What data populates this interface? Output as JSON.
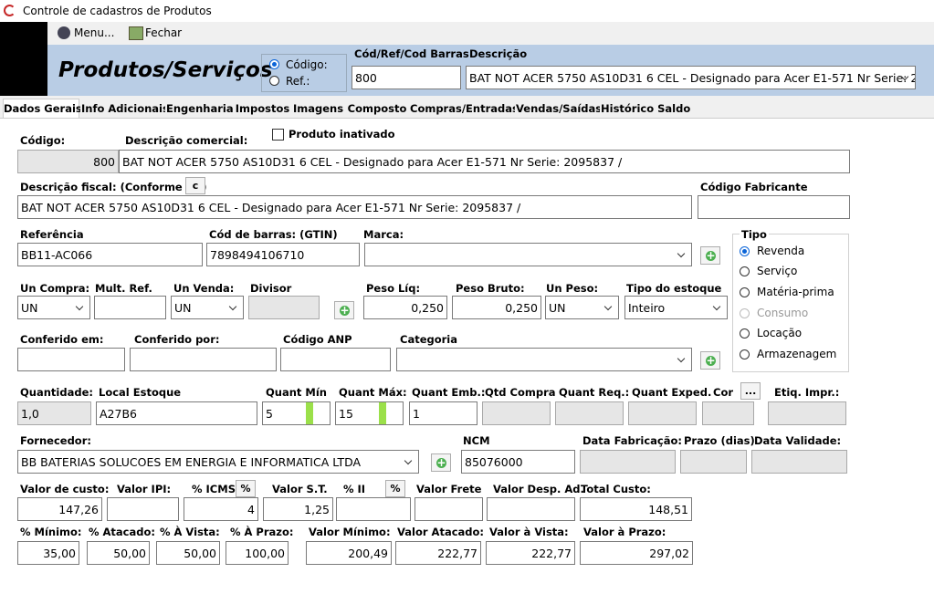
{
  "window_title": "Controle de cadastros de Produtos",
  "toolbar": [
    "Menu...",
    "Fechar"
  ],
  "header": {
    "title": "Produtos/Serviços",
    "search_by": [
      "Código:",
      "Ref.:"
    ],
    "code_label": "Cód/Ref/Cod Barras",
    "code_value": "800",
    "desc_label": "Descrição",
    "desc_value": "BAT NOT ACER 5750 AS10D31 6 CEL - Designado para Acer E1-571 Nr Serie: 2"
  },
  "tabs": [
    "Dados Gerais",
    "Info Adicionais",
    "Engenharia",
    "Impostos",
    "Imagens",
    "Composto",
    "Compras/Entradas",
    "Vendas/Saídas",
    "Histórico Saldo"
  ],
  "inactive_checkbox": "Produto inativado",
  "tipo": {
    "label": "Tipo",
    "options": [
      "Revenda",
      "Serviço",
      "Matéria-prima",
      "Consumo",
      "Locação",
      "Armazenagem"
    ]
  },
  "fields": [
    {
      "label": "Código:",
      "value": "800"
    },
    {
      "label": "Descrição comercial:",
      "value": "BAT NOT ACER 5750 AS10D31 6 CEL - Designado para Acer E1-571 Nr Serie: 2095837 /"
    },
    {
      "label": "Descrição fiscal: (Conforme NF)",
      "button": "c",
      "value": "BAT NOT ACER 5750 AS10D31 6 CEL - Designado para Acer E1-571 Nr Serie: 2095837 /"
    },
    {
      "label": "Código Fabricante"
    },
    {
      "label": "Referência",
      "value": "BB11-AC066"
    },
    {
      "label": "Cód de barras:  (GTIN)",
      "value": "7898494106710"
    },
    {
      "label": "Marca:"
    },
    {
      "label": "Un Compra:",
      "value": "UN"
    },
    {
      "label": "Mult. Ref."
    },
    {
      "label": "Un Venda:",
      "value": "UN"
    },
    {
      "label": "Divisor"
    },
    {
      "label": "Peso Líq:",
      "value": "0,250"
    },
    {
      "label": "Peso Bruto:",
      "value": "0,250"
    },
    {
      "label": "Un Peso:",
      "value": "UN"
    },
    {
      "label": "Tipo do estoque",
      "value": "Inteiro"
    },
    {
      "label": "Conferido em:"
    },
    {
      "label": "Conferido por:"
    },
    {
      "label": "Código ANP"
    },
    {
      "label": "Categoria"
    },
    {
      "label": "Quantidade:",
      "value": "1,0"
    },
    {
      "label": "Local Estoque",
      "value": "A27B6"
    },
    {
      "label": "Quant Mín",
      "value": "5"
    },
    {
      "label": "Quant Máx:",
      "value": "15"
    },
    {
      "label": "Quant Emb.:",
      "value": "1"
    },
    {
      "label": "Qtd Compra"
    },
    {
      "label": "Quant Req.:"
    },
    {
      "label": "Quant Exped."
    },
    {
      "label": "Cor",
      "button": "..."
    },
    {
      "label": "Etiq. Impr.:"
    },
    {
      "label": "Fornecedor:",
      "value": "BB BATERIAS SOLUCOES EM ENERGIA E INFORMATICA LTDA"
    },
    {
      "label": "NCM",
      "value": "85076000"
    },
    {
      "label": "Data Fabricação:"
    },
    {
      "label": "Prazo (dias)"
    },
    {
      "label": "Data Validade:"
    },
    {
      "label": "Valor de custo:",
      "value": "147,26"
    },
    {
      "label": "Valor IPI:"
    },
    {
      "label": "% ICMS",
      "button": "%",
      "value": "4"
    },
    {
      "label": "Valor S.T.",
      "value": "1,25"
    },
    {
      "label": "% II",
      "button": "%"
    },
    {
      "label": "Valor Frete"
    },
    {
      "label": "Valor Desp. Ad."
    },
    {
      "label": "Total Custo:",
      "value": "148,51"
    },
    {
      "label": "% Mínimo:",
      "value": "35,00"
    },
    {
      "label": "% Atacado:",
      "value": "50,00"
    },
    {
      "label": "% À Vista:",
      "value": "50,00"
    },
    {
      "label": "% À Prazo:",
      "value": "100,00"
    },
    {
      "label": "Valor Mínimo:",
      "value": "200,49"
    },
    {
      "label": "Valor Atacado:",
      "value": "222,77"
    },
    {
      "label": "Valor à Vista:",
      "value": "222,77"
    },
    {
      "label": "Valor à Prazo:",
      "value": "297,02"
    }
  ]
}
